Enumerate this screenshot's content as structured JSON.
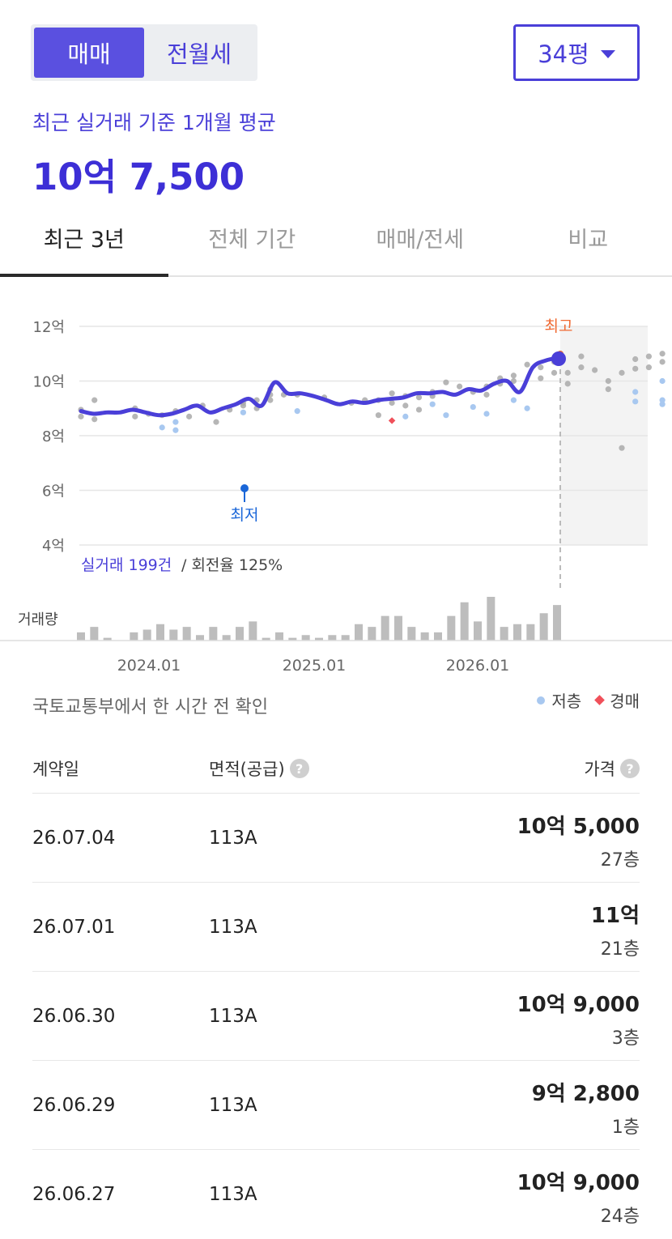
{
  "deal_toggle": {
    "options": [
      "매매",
      "전월세"
    ],
    "selected": "매매"
  },
  "area_select": {
    "value": "34평"
  },
  "summary": {
    "label": "최근 실거래 기준 1개월 평균",
    "price": "10억 7,500"
  },
  "tabs": [
    {
      "label": "최근 3년",
      "active": true
    },
    {
      "label": "전체 기간",
      "active": false
    },
    {
      "label": "매매/전세",
      "active": false
    },
    {
      "label": "비교",
      "active": false
    }
  ],
  "chart_data": {
    "type": "line",
    "unit": "억",
    "y_ticks": [
      "12억",
      "10억",
      "8억",
      "6억",
      "4억"
    ],
    "ylim": [
      4,
      12
    ],
    "x_ticks": [
      "2024.01",
      "2025.01",
      "2026.01"
    ],
    "annotations": {
      "high_label": "최고",
      "low_label": "최저"
    },
    "stats": {
      "count_label": "실거래 199건",
      "rotation_label": "/ 회전율 125%"
    },
    "volume_label": "거래량",
    "line_months": [
      0,
      1,
      2,
      3,
      4,
      5,
      6,
      7,
      8,
      9,
      10,
      11,
      12,
      13,
      14,
      15,
      16,
      17,
      18,
      19,
      20,
      21,
      22,
      23,
      24,
      25,
      26,
      27,
      28,
      29,
      30,
      31,
      32,
      33,
      34,
      35,
      36,
      37
    ],
    "line_values": [
      8.9,
      8.8,
      8.85,
      8.85,
      8.95,
      8.85,
      8.75,
      8.8,
      8.95,
      9.1,
      8.85,
      9.0,
      9.15,
      9.35,
      9.1,
      9.95,
      9.55,
      9.55,
      9.45,
      9.3,
      9.15,
      9.25,
      9.2,
      9.3,
      9.35,
      9.4,
      9.55,
      9.55,
      9.6,
      9.5,
      9.7,
      9.65,
      9.9,
      10.0,
      9.6,
      10.5,
      10.75,
      10.85
    ],
    "scatter_normal": [
      [
        0,
        8.95
      ],
      [
        0,
        8.7
      ],
      [
        1,
        9.3
      ],
      [
        1,
        8.6
      ],
      [
        4,
        9.0
      ],
      [
        4,
        8.7
      ],
      [
        5,
        8.8
      ],
      [
        6,
        8.75
      ],
      [
        7,
        8.9
      ],
      [
        8,
        8.7
      ],
      [
        9,
        9.1
      ],
      [
        10,
        8.5
      ],
      [
        11,
        8.95
      ],
      [
        12,
        9.2
      ],
      [
        12,
        9.1
      ],
      [
        13,
        9.3
      ],
      [
        13,
        9.0
      ],
      [
        14,
        9.7
      ],
      [
        14,
        9.5
      ],
      [
        14,
        9.3
      ],
      [
        15,
        9.5
      ],
      [
        16,
        9.5
      ],
      [
        18,
        9.4
      ],
      [
        20,
        9.2
      ],
      [
        21,
        9.3
      ],
      [
        22,
        8.75
      ],
      [
        22,
        9.3
      ],
      [
        23,
        9.2
      ],
      [
        23,
        9.55
      ],
      [
        24,
        9.45
      ],
      [
        24,
        9.1
      ],
      [
        25,
        9.4
      ],
      [
        25,
        8.95
      ],
      [
        26,
        9.6
      ],
      [
        26,
        9.45
      ],
      [
        27,
        9.95
      ],
      [
        28,
        9.8
      ],
      [
        29,
        9.6
      ],
      [
        30,
        9.8
      ],
      [
        30,
        9.5
      ],
      [
        31,
        10.1
      ],
      [
        31,
        9.9
      ],
      [
        32,
        10.2
      ],
      [
        32,
        10.0
      ],
      [
        33,
        10.6
      ],
      [
        34,
        10.5
      ],
      [
        34,
        10.1
      ],
      [
        35,
        10.7
      ],
      [
        35,
        10.3
      ],
      [
        36,
        10.3
      ],
      [
        36,
        9.9
      ],
      [
        37,
        10.9
      ],
      [
        37,
        10.5
      ],
      [
        38,
        10.4
      ],
      [
        39,
        10.0
      ],
      [
        39,
        9.7
      ],
      [
        40,
        10.3
      ],
      [
        40,
        7.55
      ],
      [
        41,
        10.8
      ],
      [
        41,
        10.45
      ],
      [
        42,
        10.9
      ],
      [
        42,
        10.5
      ],
      [
        43,
        11.0
      ],
      [
        43,
        10.7
      ]
    ],
    "scatter_low": [
      [
        6,
        8.3
      ],
      [
        7,
        8.5
      ],
      [
        7,
        8.2
      ],
      [
        12,
        8.85
      ],
      [
        16,
        8.9
      ],
      [
        24,
        8.7
      ],
      [
        26,
        9.15
      ],
      [
        27,
        8.75
      ],
      [
        29,
        9.05
      ],
      [
        30,
        8.8
      ],
      [
        32,
        9.3
      ],
      [
        33,
        9.0
      ],
      [
        41,
        9.6
      ],
      [
        41,
        9.25
      ],
      [
        43,
        9.3
      ],
      [
        43,
        9.15
      ],
      [
        43,
        10.0
      ]
    ],
    "scatter_auction": [
      [
        23,
        8.55
      ]
    ],
    "volume": [
      3,
      5,
      1,
      0,
      3,
      4,
      6,
      4,
      5,
      2,
      5,
      2,
      5,
      7,
      1,
      3,
      1,
      2,
      1,
      2,
      2,
      6,
      5,
      9,
      9,
      5,
      3,
      3,
      9,
      14,
      7,
      16,
      5,
      6,
      6,
      10,
      13
    ]
  },
  "source_note": "국토교통부에서 한 시간 전 확인",
  "legend": {
    "low_floor": "저층",
    "auction": "경매"
  },
  "table": {
    "headers": {
      "date": "계약일",
      "area": "면적(공급)",
      "price": "가격"
    },
    "rows": [
      {
        "date": "26.07.04",
        "area": "113A",
        "price": "10억 5,000",
        "floor": "27층"
      },
      {
        "date": "26.07.01",
        "area": "113A",
        "price": "11억",
        "floor": "21층"
      },
      {
        "date": "26.06.30",
        "area": "113A",
        "price": "10억 9,000",
        "floor": "3층"
      },
      {
        "date": "26.06.29",
        "area": "113A",
        "price": "9억 2,800",
        "floor": "1층"
      },
      {
        "date": "26.06.27",
        "area": "113A",
        "price": "10억 9,000",
        "floor": "24층"
      }
    ]
  }
}
